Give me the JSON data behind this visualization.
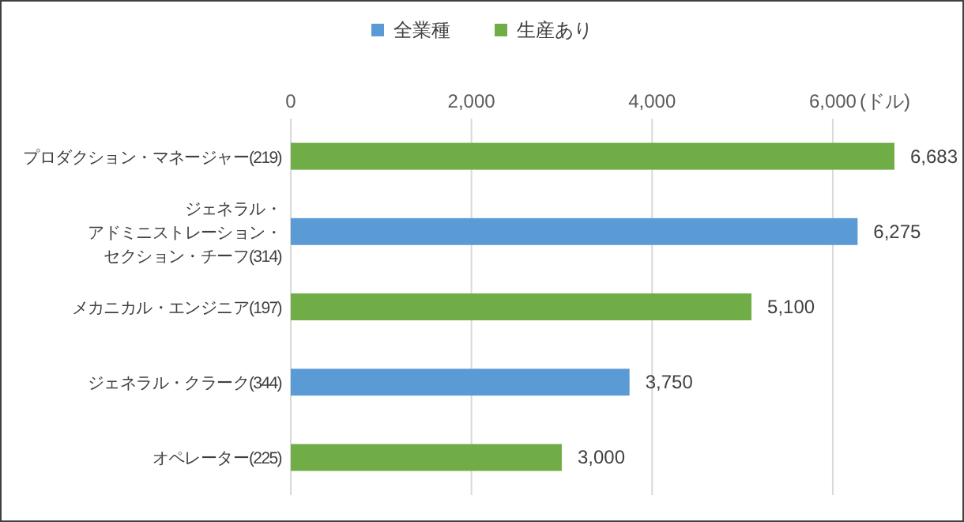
{
  "chart_data": {
    "type": "bar",
    "orientation": "horizontal",
    "xlabel": "(ドル)",
    "categories": [
      "プロダクション・マネージャー(219)",
      "ジェネラル・アドミニストレーション・セクション・チーフ(314)",
      "メカニカル・エンジニア(197)",
      "ジェネラル・クラーク(344)",
      "オペレーター(225)"
    ],
    "series": [
      {
        "name": "全業種",
        "color": "#5b9bd5",
        "values": [
          null,
          6275,
          null,
          3750,
          null
        ],
        "value_labels": [
          null,
          "6,275",
          null,
          "3,750",
          null
        ]
      },
      {
        "name": "生産あり",
        "color": "#70ad47",
        "values": [
          6683,
          null,
          5100,
          null,
          3000
        ],
        "value_labels": [
          "6,683",
          null,
          "5,100",
          null,
          "3,000"
        ]
      }
    ],
    "xlim": [
      0,
      6683
    ],
    "xticks": [
      0,
      {
        "value": 2000,
        "label": "2,000"
      },
      {
        "value": 4000,
        "label": "4,000"
      },
      {
        "value": 6000,
        "label": "6,000"
      }
    ],
    "grid": "x",
    "legend": "top"
  }
}
